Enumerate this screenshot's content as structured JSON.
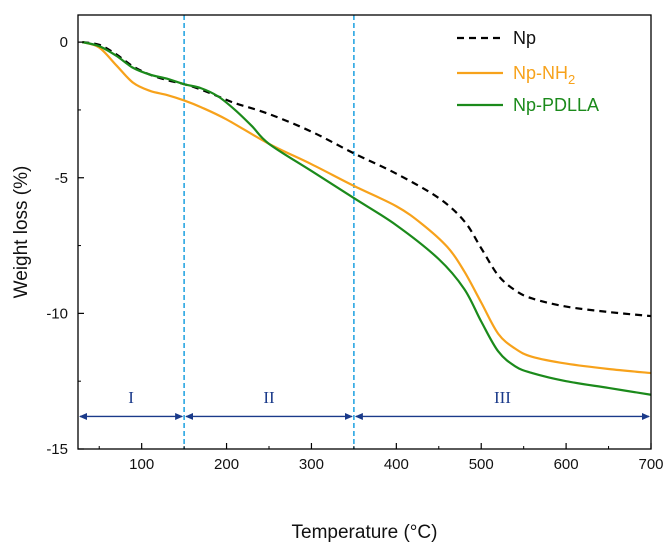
{
  "chart_data": {
    "type": "line",
    "xlabel": "Temperature (°C)",
    "ylabel": "Weight loss (%)",
    "xlim": [
      25,
      700
    ],
    "ylim": [
      -15,
      1
    ],
    "xticks": [
      100,
      200,
      300,
      400,
      500,
      600,
      700
    ],
    "yticks": [
      0,
      -5,
      -10,
      -15
    ],
    "grid": false,
    "legend_position": "top-right",
    "series": [
      {
        "name": "Np",
        "name_subscript": "",
        "color": "#000000",
        "dash": "dashed",
        "x": [
          30,
          50,
          70,
          90,
          110,
          130,
          150,
          170,
          190,
          210,
          250,
          300,
          350,
          400,
          450,
          480,
          500,
          520,
          540,
          560,
          600,
          650,
          700
        ],
        "y": [
          0,
          -0.1,
          -0.45,
          -0.9,
          -1.2,
          -1.4,
          -1.55,
          -1.75,
          -2.0,
          -2.25,
          -2.65,
          -3.3,
          -4.1,
          -4.85,
          -5.75,
          -6.6,
          -7.6,
          -8.6,
          -9.15,
          -9.45,
          -9.75,
          -9.95,
          -10.1
        ]
      },
      {
        "name": "Np-NH",
        "name_subscript": "2",
        "color": "#f7a21b",
        "dash": "solid",
        "x": [
          30,
          50,
          70,
          90,
          110,
          130,
          150,
          170,
          200,
          250,
          300,
          350,
          400,
          430,
          460,
          480,
          500,
          520,
          540,
          560,
          600,
          650,
          700
        ],
        "y": [
          0,
          -0.2,
          -0.85,
          -1.5,
          -1.8,
          -1.95,
          -2.15,
          -2.4,
          -2.85,
          -3.75,
          -4.5,
          -5.3,
          -6.05,
          -6.7,
          -7.55,
          -8.45,
          -9.6,
          -10.75,
          -11.3,
          -11.6,
          -11.85,
          -12.05,
          -12.2
        ]
      },
      {
        "name": "Np-PDLLA",
        "name_subscript": "",
        "color": "#1b8a1b",
        "dash": "solid",
        "x": [
          30,
          50,
          70,
          90,
          110,
          130,
          150,
          170,
          190,
          210,
          230,
          250,
          300,
          350,
          400,
          450,
          480,
          500,
          520,
          540,
          560,
          600,
          650,
          700
        ],
        "y": [
          0,
          -0.15,
          -0.5,
          -0.95,
          -1.2,
          -1.35,
          -1.55,
          -1.7,
          -2.0,
          -2.5,
          -3.1,
          -3.75,
          -4.75,
          -5.75,
          -6.75,
          -8.0,
          -9.1,
          -10.3,
          -11.4,
          -11.95,
          -12.2,
          -12.5,
          -12.75,
          -13.0
        ]
      }
    ],
    "vlines": [
      {
        "x": 150,
        "color": "#1ba0e0"
      },
      {
        "x": 350,
        "color": "#1ba0e0"
      }
    ],
    "regions": [
      {
        "label": "I",
        "from": 25,
        "to": 150
      },
      {
        "label": "II",
        "from": 150,
        "to": 350
      },
      {
        "label": "III",
        "from": 350,
        "to": 700
      }
    ],
    "region_arrow_y": -13.8,
    "region_label_y": -13.3,
    "region_color": "#1a3a8a"
  }
}
